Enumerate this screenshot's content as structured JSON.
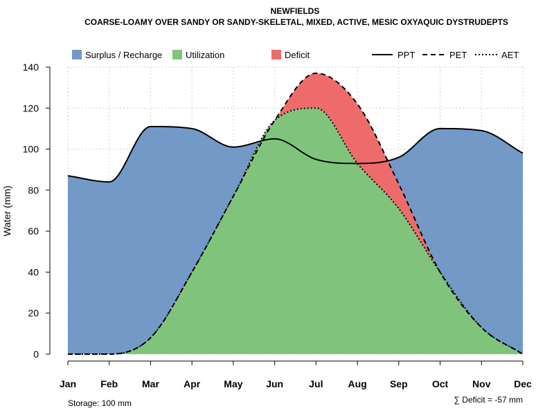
{
  "chart_data": {
    "type": "area",
    "title": "NEWFIELDS",
    "subtitle": "COARSE-LOAMY OVER SANDY OR SANDY-SKELETAL, MIXED, ACTIVE, MESIC OXYAQUIC DYSTRUDEPTS",
    "ylabel": "Water (mm)",
    "xlabel": "",
    "ylim": [
      0,
      140
    ],
    "y_ticks": [
      0,
      20,
      40,
      60,
      80,
      100,
      120,
      140
    ],
    "categories": [
      "Jan",
      "Feb",
      "Mar",
      "Apr",
      "May",
      "Jun",
      "Jul",
      "Aug",
      "Sep",
      "Oct",
      "Nov",
      "Dec"
    ],
    "series": [
      {
        "name": "PPT",
        "style": "solid",
        "values": [
          87,
          84,
          111,
          110,
          101,
          105,
          95,
          93,
          96,
          110,
          109,
          98
        ]
      },
      {
        "name": "PET",
        "style": "dashed",
        "values": [
          0,
          0,
          8,
          40,
          77,
          114,
          137,
          122,
          83,
          40,
          13,
          0
        ]
      },
      {
        "name": "AET",
        "style": "dotted",
        "values": [
          0,
          0,
          8,
          40,
          77,
          114,
          120,
          93,
          71,
          40,
          13,
          0
        ]
      }
    ],
    "areas": [
      {
        "name": "Surplus / Recharge",
        "color": "#7399C6"
      },
      {
        "name": "Utilization",
        "color": "#80C47C"
      },
      {
        "name": "Deficit",
        "color": "#ED6B6B"
      }
    ],
    "legend_position": "top",
    "grid": true,
    "annotations": {
      "storage": "Storage: 100 mm",
      "deficit": "∑ Deficit = -57 mm"
    }
  }
}
